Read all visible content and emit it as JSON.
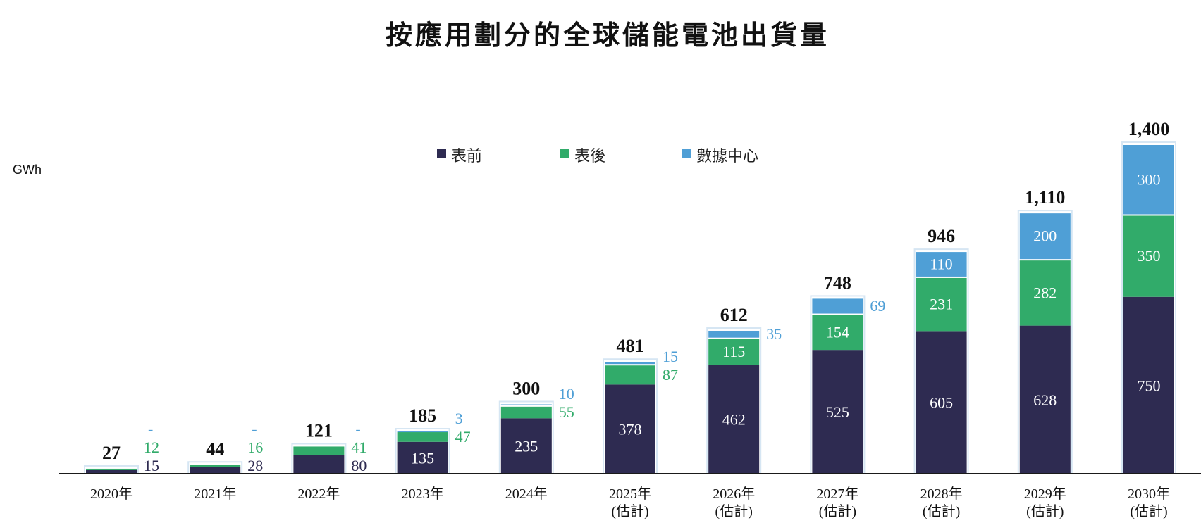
{
  "title": "按應用劃分的全球儲能電池出貨量",
  "unit_label": "GWh",
  "colors": {
    "series": [
      "#2e2b51",
      "#31ab6a",
      "#4f9fd6"
    ],
    "text_dark": "#111111"
  },
  "chart_data": {
    "type": "bar",
    "stacked": true,
    "title": "按應用劃分的全球儲能電池出貨量",
    "xlabel": "",
    "ylabel": "GWh",
    "ylim": [
      0,
      1400
    ],
    "legend_position": "top-center",
    "grid": false,
    "categories": [
      [
        "2020年",
        ""
      ],
      [
        "2021年",
        ""
      ],
      [
        "2022年",
        ""
      ],
      [
        "2023年",
        ""
      ],
      [
        "2024年",
        ""
      ],
      [
        "2025年",
        "(估計)"
      ],
      [
        "2026年",
        "(估計)"
      ],
      [
        "2027年",
        "(估計)"
      ],
      [
        "2028年",
        "(估計)"
      ],
      [
        "2029年",
        "(估計)"
      ],
      [
        "2030年",
        "(估計)"
      ]
    ],
    "series": [
      {
        "name": "表前",
        "values": [
          15,
          28,
          80,
          135,
          235,
          378,
          462,
          525,
          605,
          628,
          750
        ]
      },
      {
        "name": "表後",
        "values": [
          12,
          16,
          41,
          47,
          55,
          87,
          115,
          154,
          231,
          282,
          350
        ]
      },
      {
        "name": "數據中心",
        "values": [
          0,
          0,
          0,
          3,
          10,
          15,
          35,
          69,
          110,
          200,
          300
        ]
      }
    ],
    "value_labels": [
      [
        "15",
        "28",
        "80",
        "135",
        "235",
        "378",
        "462",
        "525",
        "605",
        "628",
        "750"
      ],
      [
        "12",
        "16",
        "41",
        "47",
        "55",
        "87",
        "115",
        "154",
        "231",
        "282",
        "350"
      ],
      [
        "-",
        "-",
        "-",
        "3",
        "10",
        "15",
        "35",
        "69",
        "110",
        "200",
        "300"
      ]
    ],
    "totals": [
      "27",
      "44",
      "121",
      "185",
      "300",
      "481",
      "612",
      "748",
      "946",
      "1,110",
      "1,400"
    ]
  }
}
